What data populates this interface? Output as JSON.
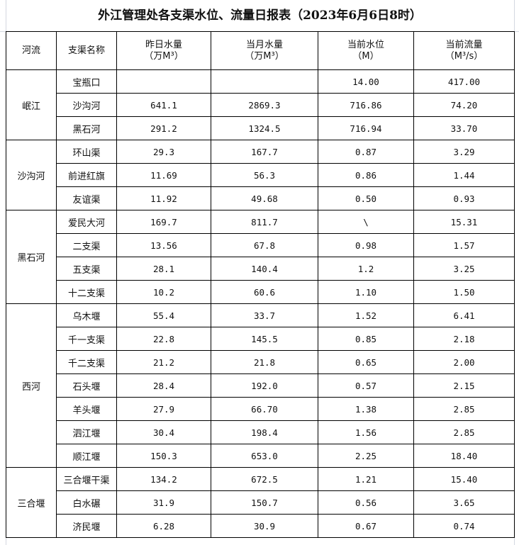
{
  "title": "外江管理处各支渠水位、流量日报表（2023年6月6日8时）",
  "headers": {
    "river": "河流",
    "branch": "支渠名称",
    "yesterday": "昨日水量",
    "yesterday_unit": "（万M³）",
    "month": "当月水量",
    "month_unit": "（万M³）",
    "level": "当前水位",
    "level_unit": "（M）",
    "flow": "当前流量",
    "flow_unit": "（M³/s）"
  },
  "groups": [
    {
      "river": "岷江",
      "rows": [
        {
          "name": "宝瓶口",
          "yesterday": "",
          "month": "",
          "level": "14.00",
          "flow": "417.00"
        },
        {
          "name": "沙沟河",
          "yesterday": "641.1",
          "month": "2869.3",
          "level": "716.86",
          "flow": "74.20"
        },
        {
          "name": "黑石河",
          "yesterday": "291.2",
          "month": "1324.5",
          "level": "716.94",
          "flow": "33.70"
        }
      ]
    },
    {
      "river": "沙沟河",
      "rows": [
        {
          "name": "环山渠",
          "yesterday": "29.3",
          "month": "167.7",
          "level": "0.87",
          "flow": "3.29"
        },
        {
          "name": "前进红旗",
          "yesterday": "11.69",
          "month": "56.3",
          "level": "0.86",
          "flow": "1.44"
        },
        {
          "name": "友谊渠",
          "yesterday": "11.92",
          "month": "49.68",
          "level": "0.50",
          "flow": "0.93"
        }
      ]
    },
    {
      "river": "黑石河",
      "rows": [
        {
          "name": "爱民大河",
          "yesterday": "169.7",
          "month": "811.7",
          "level": "\\",
          "flow": "15.31"
        },
        {
          "name": "二支渠",
          "yesterday": "13.56",
          "month": "67.8",
          "level": "0.98",
          "flow": "1.57"
        },
        {
          "name": "五支渠",
          "yesterday": "28.1",
          "month": "140.4",
          "level": "1.2",
          "flow": "3.25"
        },
        {
          "name": "十二支渠",
          "yesterday": "10.2",
          "month": "60.6",
          "level": "1.10",
          "flow": "1.50"
        }
      ]
    },
    {
      "river": "西河",
      "rows": [
        {
          "name": "乌木堰",
          "yesterday": "55.4",
          "month": "33.7",
          "level": "1.52",
          "flow": "6.41"
        },
        {
          "name": "千一支渠",
          "yesterday": "22.8",
          "month": "145.5",
          "level": "0.85",
          "flow": "2.18"
        },
        {
          "name": "千二支渠",
          "yesterday": "21.2",
          "month": "21.8",
          "level": "0.65",
          "flow": "2.00"
        },
        {
          "name": "石头堰",
          "yesterday": "28.4",
          "month": "192.0",
          "level": "0.57",
          "flow": "2.15"
        },
        {
          "name": "羊头堰",
          "yesterday": "27.9",
          "month": "66.70",
          "level": "1.38",
          "flow": "2.85"
        },
        {
          "name": "泗江堰",
          "yesterday": "30.4",
          "month": "198.4",
          "level": "1.56",
          "flow": "2.85"
        },
        {
          "name": "顺江堰",
          "yesterday": "150.3",
          "month": "653.0",
          "level": "2.25",
          "flow": "18.40"
        }
      ]
    },
    {
      "river": "三合堰",
      "rows": [
        {
          "name": "三合堰干渠",
          "yesterday": "134.2",
          "month": "672.5",
          "level": "1.21",
          "flow": "15.40"
        },
        {
          "name": "白水碾",
          "yesterday": "31.9",
          "month": "150.7",
          "level": "0.56",
          "flow": "3.65"
        },
        {
          "name": "济民堰",
          "yesterday": "6.28",
          "month": "30.9",
          "level": "0.67",
          "flow": "0.74"
        }
      ]
    }
  ]
}
